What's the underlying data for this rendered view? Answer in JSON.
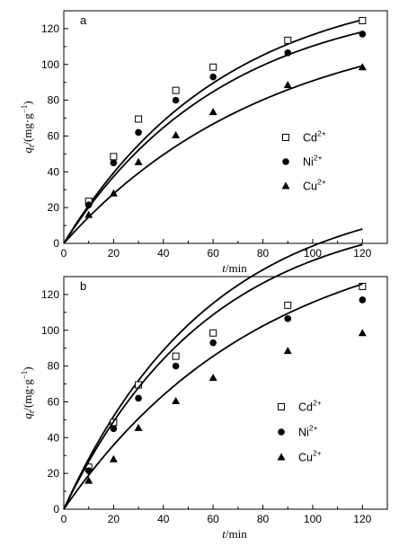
{
  "chart_data": [
    {
      "type": "scatter",
      "panel_label": "a",
      "xlabel": {
        "var": "t",
        "rest": "/min"
      },
      "ylabel": {
        "var": "q",
        "sub": "t",
        "rest": "/(mg·g",
        "sup": "−1",
        "close": ")"
      },
      "xlim": [
        0,
        130
      ],
      "ylim": [
        0,
        130
      ],
      "xticks": [
        0,
        20,
        40,
        60,
        80,
        100,
        120
      ],
      "yticks": [
        0,
        20,
        40,
        60,
        80,
        100,
        120
      ],
      "legend_position": "center-right",
      "x": [
        0,
        10,
        20,
        30,
        45,
        60,
        90,
        120
      ],
      "series": [
        {
          "name": "Cd",
          "charge": "2+",
          "marker": "open-square",
          "values": [
            0,
            23.5,
            48.5,
            69.5,
            85.5,
            98.5,
            113.5,
            124.5
          ],
          "fit": {
            "qe": 148,
            "k": 0.0155
          }
        },
        {
          "name": "Ni",
          "charge": "2+",
          "marker": "filled-circle",
          "values": [
            0,
            21.5,
            45,
            62,
            80,
            93,
            106.5,
            117
          ],
          "fit": {
            "qe": 140,
            "k": 0.0155
          }
        },
        {
          "name": "Cu",
          "charge": "2+",
          "marker": "filled-triangle",
          "values": [
            0,
            16,
            28,
            45.5,
            60.5,
            73.5,
            88.5,
            98.5
          ],
          "fit": {
            "qe": 130,
            "k": 0.012
          }
        }
      ]
    },
    {
      "type": "scatter",
      "panel_label": "b",
      "xlabel": {
        "var": "t",
        "rest": "/min"
      },
      "ylabel": {
        "var": "q",
        "sub": "t",
        "rest": "/(mg·g",
        "sup": "−1",
        "close": ")"
      },
      "xlim": [
        0,
        130
      ],
      "ylim": [
        0,
        130
      ],
      "xticks": [
        0,
        20,
        40,
        60,
        80,
        100,
        120
      ],
      "yticks": [
        0,
        20,
        40,
        60,
        80,
        100,
        120
      ],
      "legend_position": "center-right",
      "x": [
        0,
        10,
        20,
        30,
        45,
        60,
        90,
        120
      ],
      "series": [
        {
          "name": "Cd",
          "charge": "2+",
          "marker": "open-square",
          "values": [
            0,
            23.5,
            48.5,
            69.5,
            85.5,
            98.5,
            114,
            124.5
          ],
          "fit": {
            "qe": 180,
            "k": 0.017
          }
        },
        {
          "name": "Ni",
          "charge": "2+",
          "marker": "filled-circle",
          "values": [
            0,
            21.5,
            45,
            62,
            80,
            93,
            106.5,
            117
          ],
          "fit": {
            "qe": 170,
            "k": 0.017
          }
        },
        {
          "name": "Cu",
          "charge": "2+",
          "marker": "filled-triangle",
          "values": [
            0,
            16,
            28,
            45.5,
            60.5,
            73.5,
            88.5,
            98.5
          ],
          "fit": {
            "qe": 162,
            "k": 0.0125
          }
        }
      ]
    }
  ]
}
